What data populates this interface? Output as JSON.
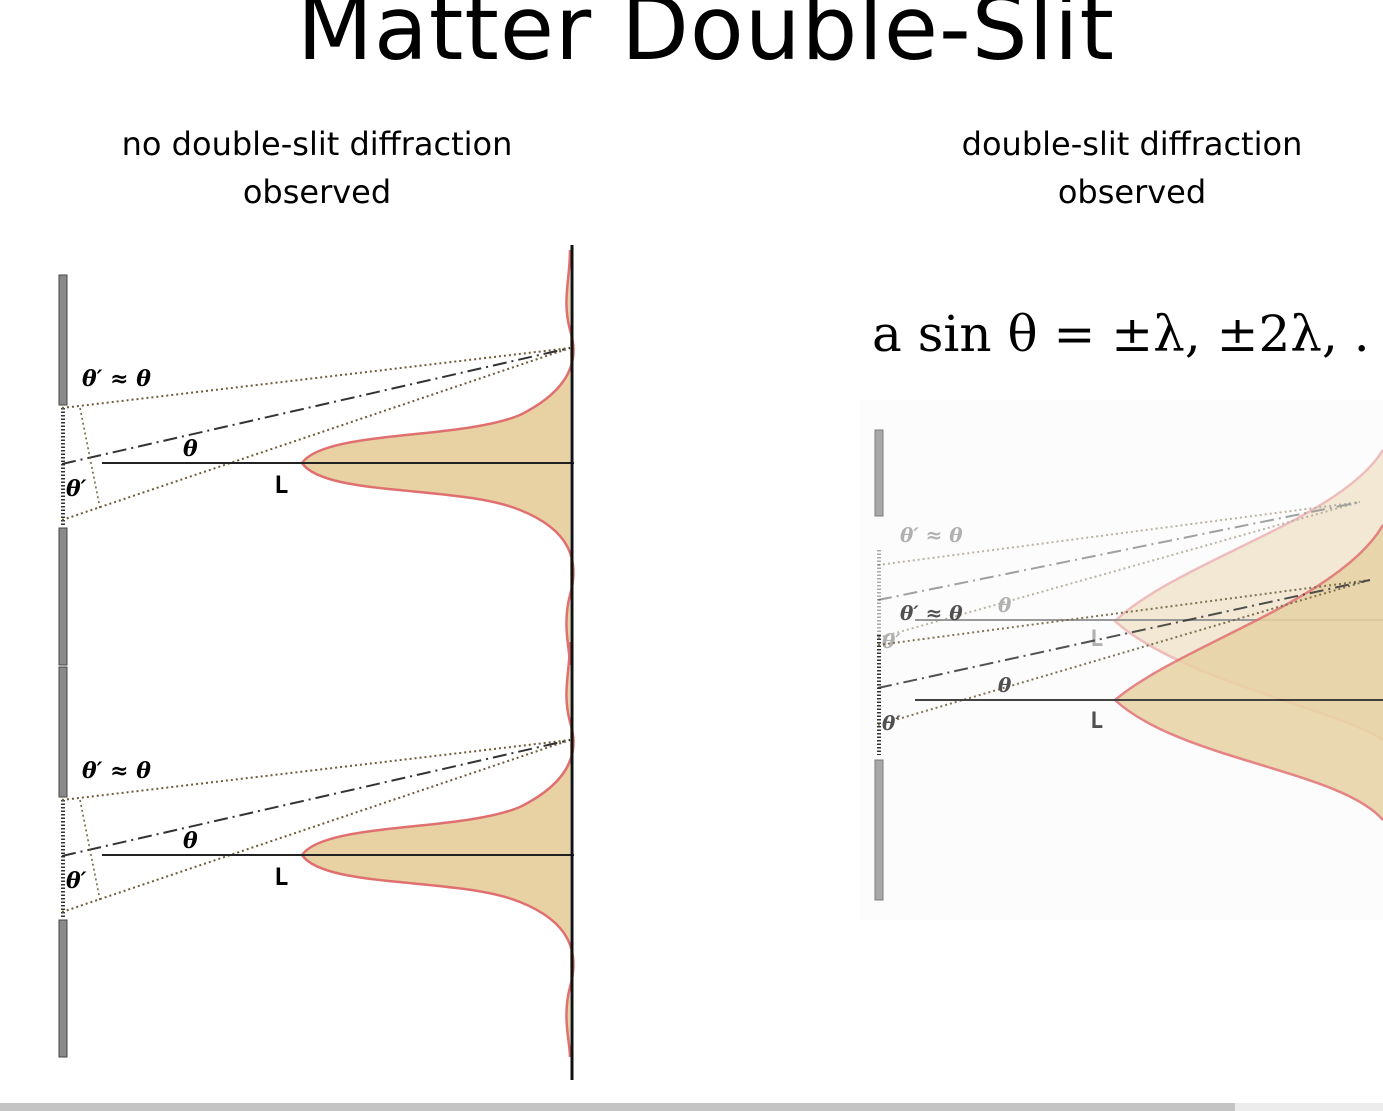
{
  "slide": {
    "title": "Matter Double-Slit"
  },
  "left_panel": {
    "caption_line1": "no double-slit diffraction",
    "caption_line2": "observed",
    "label_theta_prime_approx": "θ′ ≈ θ",
    "label_theta": "θ",
    "label_theta_prime": "θ′",
    "label_L": "L"
  },
  "right_panel": {
    "caption_line1": "double-slit diffraction",
    "caption_line2": "observed",
    "formula": "a sin θ = ±λ, ±2λ, . .",
    "label_theta_prime_approx": "θ′ ≈ θ",
    "label_theta": "θ",
    "label_theta_prime": "θ′",
    "label_L": "L"
  },
  "colors": {
    "fill": "#e8d2a4",
    "curve": "#e07070",
    "barrier": "#8a8a8a",
    "rays": "#6b5d3a"
  },
  "icons": [
    "scrollbar"
  ]
}
